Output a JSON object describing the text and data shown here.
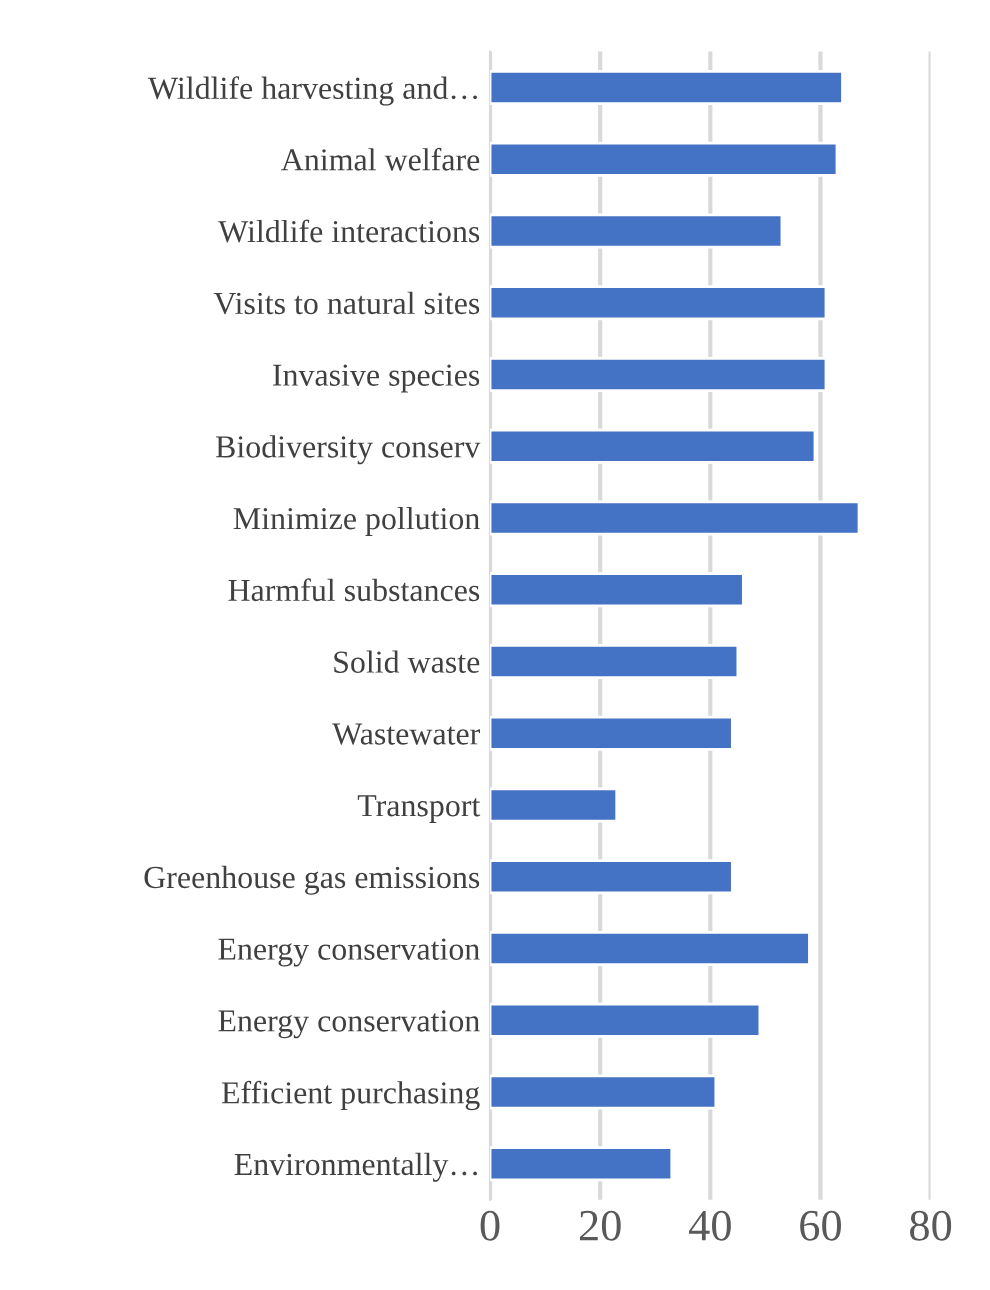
{
  "chart_data": {
    "type": "bar",
    "orientation": "horizontal",
    "categories": [
      "Wildlife harvesting and…",
      "Animal welfare",
      "Wildlife interactions",
      "Visits to natural sites",
      "Invasive species",
      "Biodiversity conserv",
      "Minimize pollution",
      "Harmful substances",
      "Solid waste",
      "Wastewater",
      "Transport",
      "Greenhouse gas emissions",
      "Energy conservation",
      "Energy conservation",
      "Efficient purchasing",
      "Environmentally…"
    ],
    "values": [
      64,
      63,
      53,
      61,
      61,
      59,
      67,
      46,
      45,
      44,
      23,
      44,
      58,
      49,
      41,
      33
    ],
    "color": "#4472c4",
    "xlim": [
      0,
      80
    ],
    "xticks": [
      0,
      20,
      40,
      60,
      80
    ],
    "grid": "x",
    "legend": false
  }
}
